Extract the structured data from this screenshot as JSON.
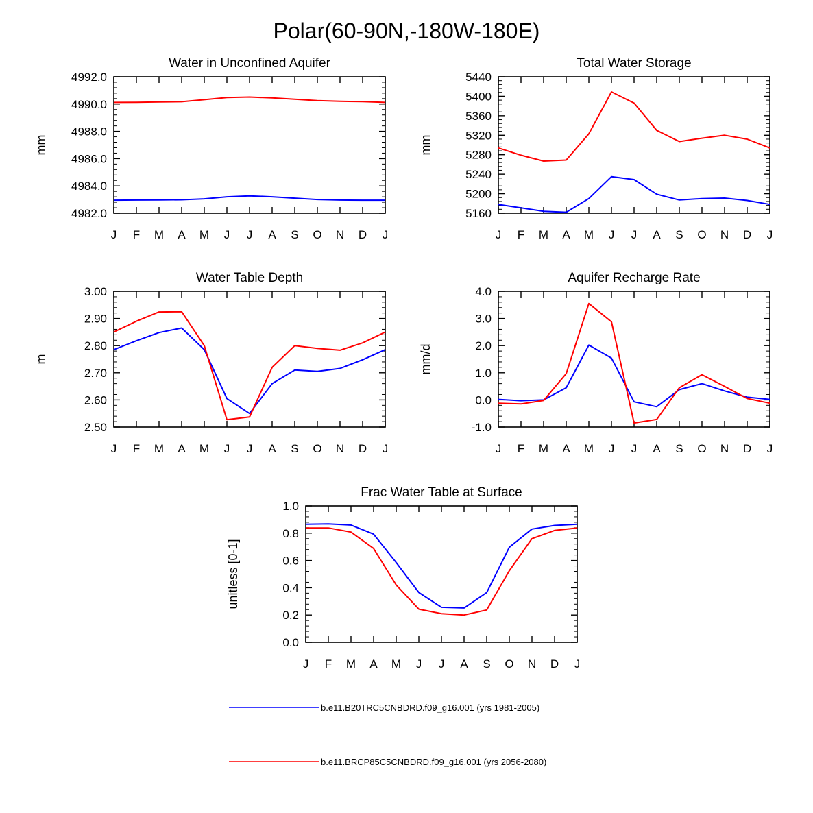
{
  "figure": {
    "title": "Polar(60-90N,-180W-180E)"
  },
  "colors": {
    "series_1": "#0000ff",
    "series_2": "#ff0000"
  },
  "legend": [
    {
      "label": "b.e11.B20TRC5CNBDRD.f09_g16.001 (yrs 1981-2005)",
      "color": "#0000ff"
    },
    {
      "label": "b.e11.BRCP85C5CNBDRD.f09_g16.001 (yrs 2056-2080)",
      "color": "#ff0000"
    }
  ],
  "chart_data": [
    {
      "type": "line",
      "title": "Water in Unconfined Aquifer",
      "xlabel": "",
      "ylabel": "mm",
      "categories": [
        "J",
        "F",
        "M",
        "A",
        "M",
        "J",
        "J",
        "A",
        "S",
        "O",
        "N",
        "D",
        "J"
      ],
      "ylim": [
        4982.0,
        4992.0
      ],
      "yticks": [
        4982.0,
        4984.0,
        4986.0,
        4988.0,
        4990.0,
        4992.0
      ],
      "ytick_labels": [
        "4982.0",
        "4984.0",
        "4986.0",
        "4988.0",
        "4990.0",
        "4992.0"
      ],
      "series": [
        {
          "name": "b.e11.B20TRC5CNBDRD.f09_g16.001 (yrs 1981-2005)",
          "color": "#0000ff",
          "values": [
            4982.95,
            4982.96,
            4982.97,
            4982.98,
            4983.05,
            4983.2,
            4983.27,
            4983.2,
            4983.1,
            4983.0,
            4982.96,
            4982.95,
            4982.95
          ]
        },
        {
          "name": "b.e11.BRCP85C5CNBDRD.f09_g16.001 (yrs 2056-2080)",
          "color": "#ff0000",
          "values": [
            4990.12,
            4990.13,
            4990.15,
            4990.17,
            4990.32,
            4990.48,
            4990.52,
            4990.45,
            4990.35,
            4990.25,
            4990.2,
            4990.18,
            4990.12
          ]
        }
      ]
    },
    {
      "type": "line",
      "title": "Total Water Storage",
      "xlabel": "",
      "ylabel": "mm",
      "categories": [
        "J",
        "F",
        "M",
        "A",
        "M",
        "J",
        "J",
        "A",
        "S",
        "O",
        "N",
        "D",
        "J"
      ],
      "ylim": [
        5160,
        5440
      ],
      "yticks": [
        5160,
        5200,
        5240,
        5280,
        5320,
        5360,
        5400,
        5440
      ],
      "ytick_labels": [
        "5160",
        "5200",
        "5240",
        "5280",
        "5320",
        "5360",
        "5400",
        "5440"
      ],
      "series": [
        {
          "name": "b.e11.B20TRC5CNBDRD.f09_g16.001 (yrs 1981-2005)",
          "color": "#0000ff",
          "values": [
            5178,
            5171,
            5164,
            5162,
            5190,
            5235,
            5229,
            5199,
            5187,
            5190,
            5191,
            5186,
            5178
          ]
        },
        {
          "name": "b.e11.BRCP85C5CNBDRD.f09_g16.001 (yrs 2056-2080)",
          "color": "#ff0000",
          "values": [
            5294,
            5279,
            5267,
            5269,
            5323,
            5409,
            5386,
            5330,
            5307,
            5314,
            5320,
            5312,
            5294
          ]
        }
      ]
    },
    {
      "type": "line",
      "title": "Water Table Depth",
      "xlabel": "",
      "ylabel": "m",
      "categories": [
        "J",
        "F",
        "M",
        "A",
        "M",
        "J",
        "J",
        "A",
        "S",
        "O",
        "N",
        "D",
        "J"
      ],
      "ylim": [
        2.5,
        3.0
      ],
      "yticks": [
        2.5,
        2.6,
        2.7,
        2.8,
        2.9,
        3.0
      ],
      "ytick_labels": [
        "2.50",
        "2.60",
        "2.70",
        "2.80",
        "2.90",
        "3.00"
      ],
      "series": [
        {
          "name": "b.e11.B20TRC5CNBDRD.f09_g16.001 (yrs 1981-2005)",
          "color": "#0000ff",
          "values": [
            2.785,
            2.818,
            2.848,
            2.865,
            2.785,
            2.605,
            2.55,
            2.66,
            2.71,
            2.705,
            2.716,
            2.748,
            2.785
          ]
        },
        {
          "name": "b.e11.BRCP85C5CNBDRD.f09_g16.001 (yrs 2056-2080)",
          "color": "#ff0000",
          "values": [
            2.85,
            2.89,
            2.924,
            2.925,
            2.8,
            2.527,
            2.537,
            2.72,
            2.8,
            2.79,
            2.783,
            2.81,
            2.85
          ]
        }
      ]
    },
    {
      "type": "line",
      "title": "Aquifer Recharge Rate",
      "xlabel": "",
      "ylabel": "mm/d",
      "categories": [
        "J",
        "F",
        "M",
        "A",
        "M",
        "J",
        "J",
        "A",
        "S",
        "O",
        "N",
        "D",
        "J"
      ],
      "ylim": [
        -1.0,
        4.0
      ],
      "yticks": [
        -1.0,
        0.0,
        1.0,
        2.0,
        3.0,
        4.0
      ],
      "ytick_labels": [
        "-1.0",
        "0.0",
        "1.0",
        "2.0",
        "3.0",
        "4.0"
      ],
      "series": [
        {
          "name": "b.e11.B20TRC5CNBDRD.f09_g16.001 (yrs 1981-2005)",
          "color": "#0000ff",
          "values": [
            0.02,
            -0.03,
            0.0,
            0.45,
            2.02,
            1.54,
            -0.07,
            -0.25,
            0.38,
            0.6,
            0.33,
            0.1,
            0.02
          ]
        },
        {
          "name": "b.e11.BRCP85C5CNBDRD.f09_g16.001 (yrs 2056-2080)",
          "color": "#ff0000",
          "values": [
            -0.12,
            -0.15,
            -0.02,
            0.97,
            3.55,
            2.88,
            -0.85,
            -0.72,
            0.45,
            0.93,
            0.5,
            0.05,
            -0.12
          ]
        }
      ]
    },
    {
      "type": "line",
      "title": "Frac Water Table at Surface",
      "xlabel": "",
      "ylabel": "unitless [0-1]",
      "categories": [
        "J",
        "F",
        "M",
        "A",
        "M",
        "J",
        "J",
        "A",
        "S",
        "O",
        "N",
        "D",
        "J"
      ],
      "ylim": [
        0.0,
        1.0
      ],
      "yticks": [
        0.0,
        0.2,
        0.4,
        0.6,
        0.8,
        1.0
      ],
      "ytick_labels": [
        "0.0",
        "0.2",
        "0.4",
        "0.6",
        "0.8",
        "1.0"
      ],
      "series": [
        {
          "name": "b.e11.B20TRC5CNBDRD.f09_g16.001 (yrs 1981-2005)",
          "color": "#0000ff",
          "values": [
            0.866,
            0.868,
            0.86,
            0.793,
            0.585,
            0.365,
            0.257,
            0.252,
            0.365,
            0.697,
            0.83,
            0.857,
            0.866
          ]
        },
        {
          "name": "b.e11.BRCP85C5CNBDRD.f09_g16.001 (yrs 2056-2080)",
          "color": "#ff0000",
          "values": [
            0.838,
            0.838,
            0.808,
            0.688,
            0.42,
            0.243,
            0.21,
            0.2,
            0.237,
            0.525,
            0.76,
            0.82,
            0.838
          ]
        }
      ]
    }
  ]
}
